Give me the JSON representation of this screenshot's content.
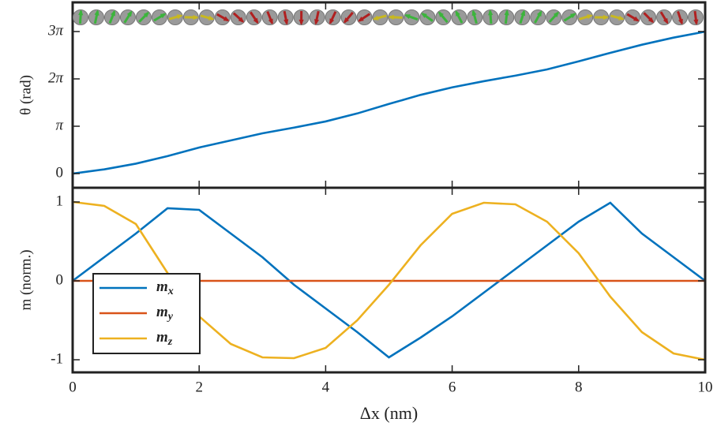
{
  "chart_data": [
    {
      "type": "line",
      "ylabel": "θ (rad)",
      "x": [
        0,
        0.5,
        1,
        1.5,
        2,
        2.5,
        3,
        3.5,
        4,
        4.5,
        5,
        5.5,
        6,
        6.5,
        7,
        7.5,
        8,
        8.5,
        9,
        9.5,
        10
      ],
      "values": [
        0,
        0.28,
        0.66,
        1.16,
        1.73,
        2.2,
        2.67,
        3.05,
        3.46,
        3.99,
        4.62,
        5.22,
        5.72,
        6.13,
        6.5,
        6.91,
        7.45,
        8.01,
        8.55,
        9.02,
        9.42
      ],
      "color": "#0072bd",
      "xlim": [
        0,
        10
      ],
      "xticks": [
        0,
        2,
        4,
        6,
        8,
        10
      ],
      "ylim": [
        -0.94,
        11.36
      ],
      "yticks": [
        0,
        {
          "value": 3.1416,
          "label": "π"
        },
        {
          "value": 6.2832,
          "label": "2π"
        },
        {
          "value": 9.4248,
          "label": "3π"
        }
      ]
    },
    {
      "type": "line",
      "ylabel": "m (norm.)",
      "xlabel": "Δx (nm)",
      "x": [
        0,
        0.5,
        1,
        1.5,
        2,
        2.5,
        3,
        3.5,
        4,
        4.5,
        5,
        5.5,
        6,
        6.5,
        7,
        7.5,
        8,
        8.5,
        9,
        9.5,
        10
      ],
      "series": [
        {
          "name": "mx",
          "color": "#0072bd",
          "values": [
            0,
            0.3,
            0.6,
            0.92,
            0.9,
            0.6,
            0.3,
            -0.05,
            -0.35,
            -0.65,
            -0.97,
            -0.72,
            -0.45,
            -0.15,
            0.15,
            0.45,
            0.75,
            0.99,
            0.6,
            0.3,
            0
          ]
        },
        {
          "name": "my",
          "color": "#d95319",
          "values": [
            0,
            0,
            0,
            0,
            0,
            0,
            0,
            0,
            0,
            0,
            0,
            0,
            0,
            0,
            0,
            0,
            0,
            0,
            0,
            0,
            0
          ]
        },
        {
          "name": "mz",
          "color": "#edb120",
          "values": [
            1,
            0.95,
            0.72,
            0.1,
            -0.45,
            -0.8,
            -0.97,
            -0.98,
            -0.85,
            -0.5,
            -0.05,
            0.45,
            0.85,
            0.99,
            0.97,
            0.75,
            0.35,
            -0.2,
            -0.65,
            -0.92,
            -1
          ]
        }
      ],
      "xlim": [
        0,
        10
      ],
      "xticks": [
        0,
        2,
        4,
        6,
        8,
        10
      ],
      "ylim": [
        -1.16,
        1.18
      ],
      "yticks": [
        -1,
        0,
        1
      ],
      "legend": "lower-left"
    }
  ]
}
